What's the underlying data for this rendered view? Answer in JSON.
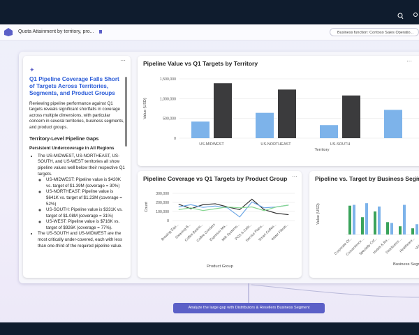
{
  "app_bar": {
    "title": "Quota Attainment by territory, pro...",
    "filter": "Business function: Contoso Sales Operatio..."
  },
  "narrative": {
    "title": "Q1 Pipeline Coverage Falls Short of Targets Across Territories, Segments, and Product Groups",
    "intro": "Reviewing pipeline performance against Q1 targets reveals significant shortfalls in coverage across multiple dimensions, with particular concern in several territories, business segments, and product groups.",
    "heading": "Territory-Level Pipeline Gaps",
    "subheading": "Persistent Undercoverage in All Regions",
    "bullets": [
      {
        "text": "The US-MIDWEST, US-NORTHEAST, US-SOUTH, and US-WEST territories all show pipeline values well below their respective Q1 targets.",
        "items": [
          "US-MIDWEST: Pipeline value is $420K vs. target of $1.39M (coverage = 30%)",
          "US-NORTHEAST: Pipeline value is $641K vs. target of $1.23M (coverage = 52%)",
          "US-SOUTH: Pipeline value is $331K vs. target of $1.08M (coverage = 31%)",
          "US-WEST: Pipeline value is $716K vs. target of $926K (coverage = 77%)."
        ]
      },
      {
        "text": "The US-SOUTH and US-MIDWEST are the most critically under-covered, each with less than one-third of the required pipeline value."
      }
    ]
  },
  "charts": [
    {
      "type": "bar",
      "title": "Pipeline Value vs Q1 Targets by Territory",
      "x_label": "Territory",
      "y_label": "Value (USD)",
      "categories": [
        "US-MIDWEST",
        "US-NORTHEAST",
        "US-SOUTH",
        null
      ],
      "series": [
        {
          "color": "#7db3ea",
          "values": [
            420000,
            641000,
            331000,
            716000
          ]
        },
        {
          "color": "#3b3b3d",
          "values": [
            1390000,
            1230000,
            1080000,
            null
          ]
        }
      ],
      "ylim": [
        0,
        1500000
      ],
      "yticks": [
        0,
        {
          "value": 500000,
          "label": "500,000"
        },
        {
          "value": 1000000,
          "label": "1,000,000"
        },
        {
          "value": 1500000,
          "label": "1,500,000"
        }
      ],
      "grid": true
    },
    {
      "type": "line",
      "title": "Pipeline Coverage vs Q1 Targets by Product Group",
      "x_label": "Product Group",
      "y_label": "Count",
      "categories": [
        "Brewing Equ...",
        "Cleaning B...",
        "Coffee Beans...",
        "Coffee Grinders",
        "Espresso Ma...",
        "Milk Systems...",
        "POS & Cafe...",
        "Service Plans...",
        "Smart Coffee...",
        "Water Filtrati..."
      ],
      "series": [
        {
          "color": "#333333",
          "values": [
            180000,
            130000,
            175000,
            185000,
            150000,
            120000,
            235000,
            120000,
            80000,
            65000
          ]
        },
        {
          "color": "#6ea8e6",
          "values": [
            150000,
            175000,
            145000,
            160000,
            140000,
            40000,
            205000,
            140000,
            150000,
            170000
          ]
        },
        {
          "color": "#86d690",
          "values": [
            120000,
            140000,
            110000,
            130000,
            150000,
            140000,
            150000,
            110000,
            150000,
            170000
          ]
        }
      ],
      "ylim": [
        0,
        300000
      ],
      "yticks": [
        0,
        {
          "value": 100000,
          "label": "100,000"
        },
        {
          "value": 200000,
          "label": "200,000"
        },
        {
          "value": 300000,
          "label": "300,000"
        }
      ],
      "grid": true
    },
    {
      "type": "bar",
      "title": "Pipeline vs. Target by Business Segment",
      "x_label": "Business Segment",
      "y_label": "Value (USD)",
      "categories": [
        "Corporate Of...",
        "Convenience ...",
        "Specialty Cof...",
        "Hotels & Re...",
        "Distributors ...",
        "Healthcare...",
        "Universi..."
      ],
      "series": [
        {
          "color": "#3aa35b",
          "values": [
            700000,
            420000,
            560000,
            300000,
            200000,
            150000,
            220000
          ]
        },
        {
          "color": "#7db3ea",
          "values": [
            720000,
            760000,
            680000,
            280000,
            720000,
            250000,
            200000
          ]
        }
      ],
      "ylim": [
        0,
        1000000
      ],
      "grid": true
    }
  ],
  "action": "Analyze the large gap with Distributors & Resellers Business Segment"
}
